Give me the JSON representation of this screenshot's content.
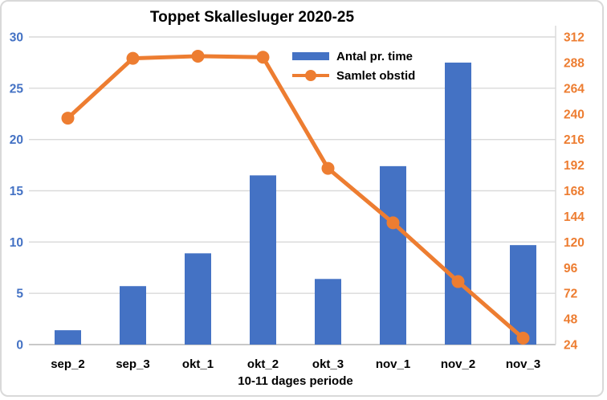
{
  "chart_data": {
    "type": "bar",
    "subtype": "combo-bar-line-dual-axis",
    "title": "Toppet Skallesluger 2020-25",
    "xlabel": "10-11 dages periode",
    "categories": [
      "sep_2",
      "sep_3",
      "okt_1",
      "okt_2",
      "okt_3",
      "nov_1",
      "nov_2",
      "nov_3"
    ],
    "series": [
      {
        "name": "Antal pr. time",
        "type": "bar",
        "axis": "left",
        "color": "#4472c4",
        "values": [
          1.4,
          5.7,
          8.9,
          16.5,
          6.4,
          17.4,
          27.5,
          9.7
        ]
      },
      {
        "name": "Samlet obstid",
        "type": "line",
        "axis": "right",
        "color": "#ed7d31",
        "values": [
          236,
          292,
          294,
          293,
          189,
          138,
          83,
          30
        ]
      }
    ],
    "left_axis": {
      "min": 0,
      "max": 30,
      "step": 5,
      "tick_color": "#4472c4"
    },
    "right_axis": {
      "min": 24,
      "max": 312,
      "step": 24,
      "tick_color": "#ed7d31"
    },
    "grid": true,
    "gridline_color": "#d9d9d9",
    "axisline_color": "#c8c8c8",
    "legend_position": "top-right-inside"
  }
}
